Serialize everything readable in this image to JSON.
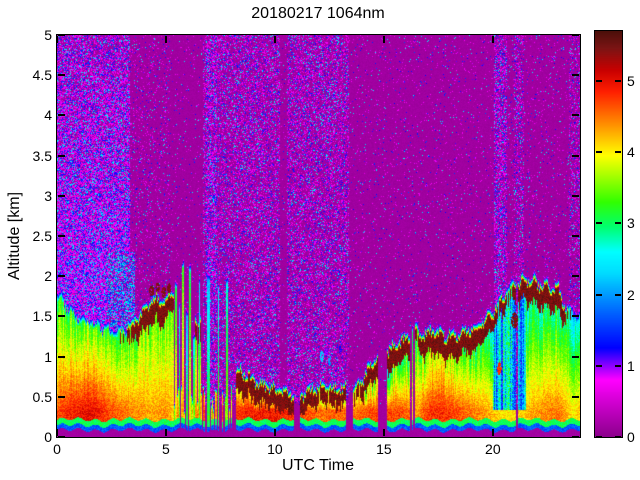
{
  "figure": {
    "title": "20180217 1064nm",
    "xlabel": "UTC Time",
    "ylabel": "Altitude [km]"
  },
  "chart_data": {
    "type": "heatmap",
    "title": "20180217 1064nm",
    "xlabel": "UTC Time",
    "ylabel": "Altitude [km]",
    "x_range": [
      0,
      24
    ],
    "y_range": [
      0,
      5
    ],
    "x_ticks": [
      0,
      5,
      10,
      15,
      20
    ],
    "y_ticks": [
      0,
      0.5,
      1,
      1.5,
      2,
      2.5,
      3,
      3.5,
      4,
      4.5,
      5
    ],
    "grid": false,
    "legend": "colorbar-right",
    "colorbar": {
      "ticks": [
        0,
        1,
        2,
        3,
        4,
        5
      ],
      "vmin": 0,
      "vmax": 5.7,
      "stops": [
        [
          0.0,
          "#8B008B"
        ],
        [
          0.45,
          "#CC00CC"
        ],
        [
          0.8,
          "#FF00FF"
        ],
        [
          1.25,
          "#0000FF"
        ],
        [
          1.75,
          "#0064FF"
        ],
        [
          2.3,
          "#00DCFF"
        ],
        [
          2.6,
          "#00FFFF"
        ],
        [
          2.95,
          "#00FF6E"
        ],
        [
          3.3,
          "#32FF00"
        ],
        [
          3.95,
          "#FFFF00"
        ],
        [
          4.4,
          "#FF8C00"
        ],
        [
          4.85,
          "#FF1E00"
        ],
        [
          5.15,
          "#C80000"
        ],
        [
          5.45,
          "#7D1414"
        ],
        [
          5.7,
          "#4B0F0A"
        ]
      ]
    },
    "background_color": "#8F008F",
    "field": {
      "description": "Aerosol boundary layer backscatter vs UTC time; keyframes give layer top height (km), dark-red cap strength, interior value, near-surface value.",
      "keyframe_fields": [
        "t",
        "top_km",
        "cap",
        "mid_value",
        "low_value"
      ],
      "keyframes": [
        [
          0.0,
          1.72,
          0,
          3.1,
          4.6
        ],
        [
          0.4,
          1.6,
          0,
          3.3,
          4.8
        ],
        [
          0.9,
          1.45,
          0,
          3.3,
          4.9
        ],
        [
          1.6,
          1.38,
          0,
          3.5,
          5.0
        ],
        [
          2.4,
          1.28,
          0,
          3.1,
          4.7
        ],
        [
          3.1,
          1.3,
          0.2,
          3.2,
          4.5
        ],
        [
          3.7,
          1.45,
          0.8,
          3.4,
          4.4
        ],
        [
          4.2,
          1.6,
          1,
          3.5,
          4.3
        ],
        [
          4.6,
          1.7,
          1,
          3.4,
          4.3
        ],
        [
          5.0,
          1.65,
          1,
          3.6,
          4.4
        ],
        [
          5.3,
          1.8,
          0.5,
          3.2,
          4.2
        ],
        [
          8.25,
          0.8,
          0.9,
          4.0,
          4.8
        ],
        [
          9.0,
          0.68,
          0.9,
          4.2,
          4.9
        ],
        [
          10.0,
          0.55,
          0.8,
          4.3,
          4.9
        ],
        [
          10.8,
          0.5,
          0.7,
          4.2,
          4.8
        ],
        [
          11.3,
          0.5,
          0.7,
          4.1,
          4.7
        ],
        [
          12.2,
          0.6,
          0.5,
          3.8,
          4.5
        ],
        [
          12.8,
          0.56,
          0.6,
          3.9,
          4.6
        ],
        [
          13.7,
          0.55,
          0.4,
          3.8,
          4.5
        ],
        [
          14.1,
          0.7,
          0.6,
          3.6,
          4.6
        ],
        [
          14.45,
          0.9,
          0.8,
          3.3,
          4.7
        ],
        [
          15.25,
          1.05,
          1,
          3.0,
          4.7
        ],
        [
          15.8,
          1.15,
          1,
          3.2,
          4.7
        ],
        [
          16.55,
          1.3,
          0.2,
          3.0,
          4.3
        ],
        [
          16.8,
          1.2,
          0.8,
          3.4,
          4.6
        ],
        [
          17.2,
          1.28,
          1,
          3.8,
          4.8
        ],
        [
          17.8,
          1.22,
          1,
          3.7,
          4.8
        ],
        [
          18.6,
          1.25,
          1,
          3.3,
          4.6
        ],
        [
          19.4,
          1.35,
          1,
          3.0,
          4.4
        ],
        [
          20.0,
          1.5,
          0.5,
          2.6,
          4.2
        ],
        [
          20.8,
          1.85,
          0.3,
          2.3,
          4.0
        ],
        [
          21.55,
          1.9,
          1,
          2.7,
          4.2
        ],
        [
          22.3,
          1.85,
          1,
          2.9,
          4.4
        ],
        [
          23.0,
          1.8,
          1,
          3.0,
          4.5
        ],
        [
          23.35,
          1.55,
          0.3,
          2.7,
          4.3
        ],
        [
          23.7,
          1.5,
          0,
          2.4,
          4.0
        ],
        [
          24.0,
          1.45,
          0,
          2.5,
          4.2
        ]
      ],
      "gaps": [
        [
          10.88,
          11.15
        ],
        [
          13.25,
          13.58
        ],
        [
          14.75,
          15.15
        ],
        [
          16.18,
          16.45
        ],
        [
          21.05,
          21.16
        ]
      ],
      "striped_zone_fields": [
        "t0",
        "t1",
        "bottom_keep_fraction"
      ],
      "striped_zones": [
        [
          5.35,
          6.35,
          0.7
        ],
        [
          6.6,
          8.2,
          0.25
        ]
      ],
      "spike_fields": [
        "t",
        "width_h",
        "top_km",
        "value"
      ],
      "spikes": [
        [
          5.45,
          0.1,
          1.85,
          3.1
        ],
        [
          5.62,
          0.08,
          1.6,
          2.4
        ],
        [
          5.78,
          0.1,
          2.1,
          3.3
        ],
        [
          5.95,
          0.08,
          1.5,
          2.2
        ],
        [
          6.1,
          0.1,
          2.05,
          3.0
        ],
        [
          6.28,
          0.06,
          1.2,
          2.5
        ],
        [
          6.45,
          0.05,
          0.4,
          3.5
        ],
        [
          6.55,
          0.07,
          1.9,
          2.3
        ],
        [
          6.75,
          0.05,
          0.5,
          4.0
        ],
        [
          6.95,
          0.1,
          1.95,
          2.2
        ],
        [
          7.15,
          0.05,
          0.45,
          3.5
        ],
        [
          7.4,
          0.06,
          1.85,
          2.4
        ],
        [
          7.6,
          0.05,
          0.5,
          4.2
        ],
        [
          7.8,
          0.07,
          1.9,
          2.6
        ],
        [
          8.0,
          0.05,
          0.6,
          3.0
        ],
        [
          16.3,
          0.04,
          1.3,
          3.0
        ]
      ],
      "blob_fields": [
        "t",
        "z_km",
        "rt_h",
        "rz_km",
        "value"
      ],
      "blobs": [
        [
          4.35,
          1.82,
          0.12,
          0.07,
          5.45
        ],
        [
          4.62,
          1.86,
          0.1,
          0.06,
          5.45
        ],
        [
          4.9,
          1.8,
          0.11,
          0.07,
          5.45
        ],
        [
          5.15,
          1.85,
          0.09,
          0.06,
          5.45
        ],
        [
          12.15,
          1.0,
          0.1,
          0.07,
          2.2
        ],
        [
          12.35,
          1.06,
          0.08,
          0.06,
          1.0
        ],
        [
          12.52,
          0.95,
          0.07,
          0.06,
          2.0
        ],
        [
          13.0,
          1.08,
          0.06,
          0.05,
          1.2
        ],
        [
          20.3,
          0.85,
          0.1,
          0.08,
          4.8
        ],
        [
          21.0,
          1.45,
          0.16,
          0.1,
          5.45
        ]
      ],
      "rain_columns": [
        [
          20.0,
          21.5
        ]
      ],
      "noise_band_fields": [
        "t0",
        "t1",
        "density",
        "fade_with_height"
      ],
      "noise_bands": [
        [
          0,
          3.35,
          0.85,
          1
        ],
        [
          3.35,
          5.2,
          0.12,
          0
        ],
        [
          5.2,
          6.7,
          0.04,
          0
        ],
        [
          6.7,
          6.85,
          0.35,
          0
        ],
        [
          6.85,
          7.35,
          0.6,
          0
        ],
        [
          7.35,
          10.25,
          0.38,
          0
        ],
        [
          10.25,
          10.55,
          0.04,
          0
        ],
        [
          10.55,
          13.4,
          0.38,
          0
        ],
        [
          13.4,
          20.05,
          0.05,
          0
        ],
        [
          20.05,
          20.65,
          0.5,
          0
        ],
        [
          20.65,
          20.95,
          0.08,
          0
        ],
        [
          20.95,
          21.45,
          0.32,
          0
        ],
        [
          21.45,
          23.5,
          0.06,
          0
        ],
        [
          23.5,
          24,
          0.28,
          0
        ]
      ],
      "noise_patches": [
        {
          "t0": 2.3,
          "t1": 3.6,
          "z0": 1.1,
          "z1": 2.3,
          "density": 0.75,
          "flavor": "cyan"
        }
      ],
      "surface_bands": {
        "blind_zone_top_km": 0.085,
        "blue_line_top_km": 0.145,
        "green_line_top_km": 0.215
      }
    }
  }
}
